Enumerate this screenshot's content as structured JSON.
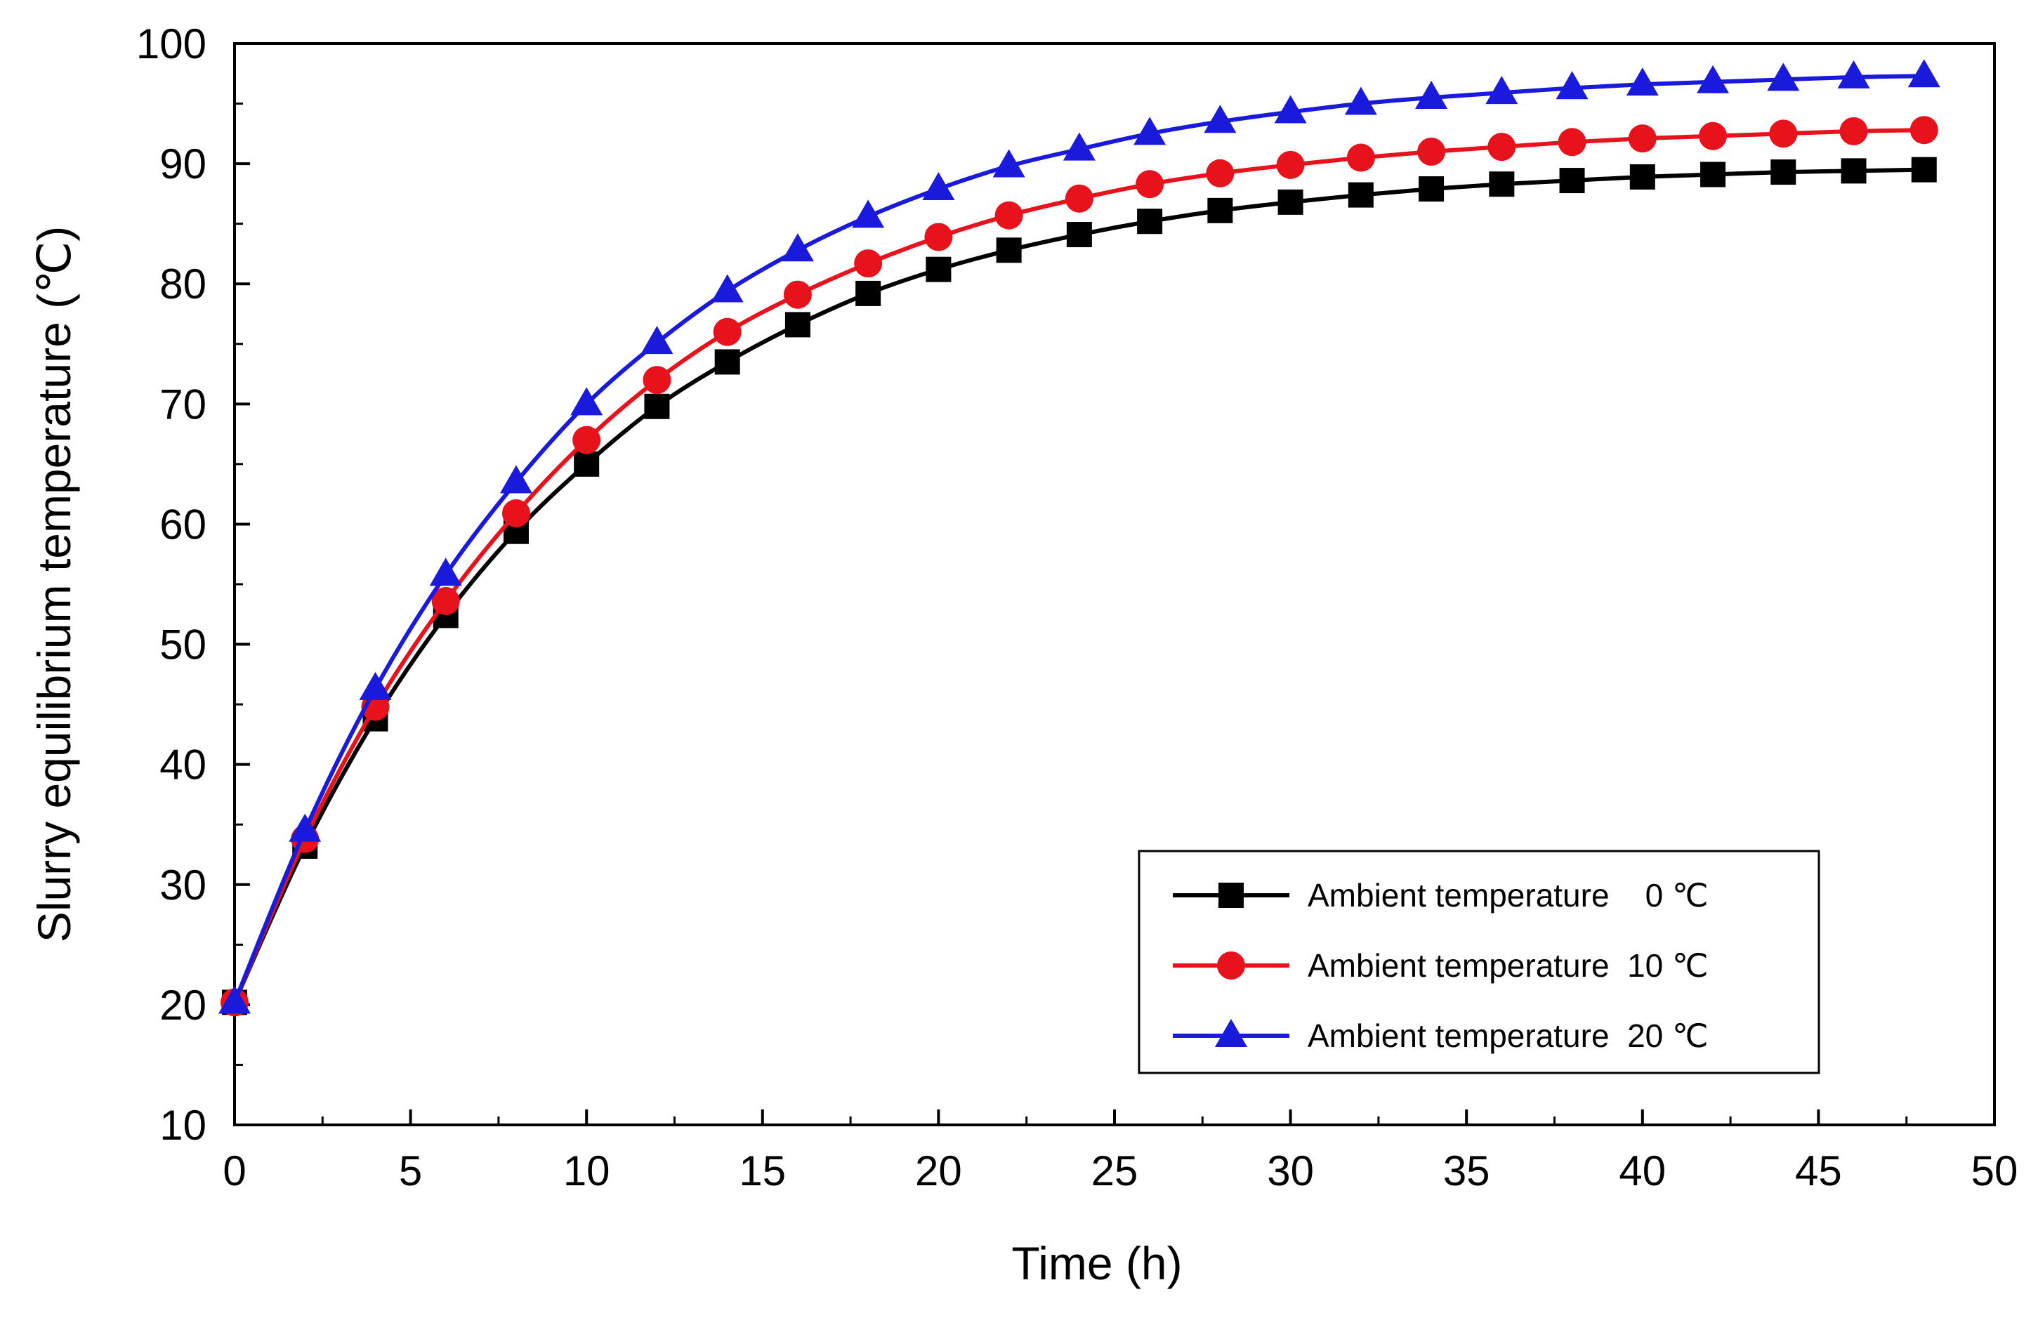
{
  "chart_data": {
    "type": "line",
    "title": "",
    "xlabel": "Time (h)",
    "ylabel": "Slurry equilibrium temperature (℃)",
    "xlim": [
      0,
      50
    ],
    "ylim": [
      10,
      100
    ],
    "xticks": [
      0,
      5,
      10,
      15,
      20,
      25,
      30,
      35,
      40,
      45,
      50
    ],
    "yticks": [
      10,
      20,
      30,
      40,
      50,
      60,
      70,
      80,
      90,
      100
    ],
    "grid": false,
    "legend_position": "bottom-right",
    "x": [
      0,
      2,
      4,
      6,
      8,
      10,
      12,
      14,
      16,
      18,
      20,
      22,
      24,
      26,
      28,
      30,
      32,
      34,
      36,
      38,
      40,
      42,
      44,
      46,
      48
    ],
    "series": [
      {
        "name": "Ambient temperature    0 ℃",
        "color": "#000000",
        "marker": "square",
        "values": [
          20.2,
          33.2,
          43.8,
          52.4,
          59.4,
          65.0,
          69.8,
          73.5,
          76.6,
          79.2,
          81.2,
          82.8,
          84.1,
          85.2,
          86.1,
          86.8,
          87.4,
          87.9,
          88.3,
          88.6,
          88.9,
          89.1,
          89.3,
          89.4,
          89.5
        ]
      },
      {
        "name": "Ambient temperature  10 ℃",
        "color": "#e8121c",
        "marker": "circle",
        "values": [
          20.2,
          33.8,
          44.8,
          53.6,
          60.9,
          67.0,
          72.0,
          76.0,
          79.1,
          81.7,
          83.9,
          85.7,
          87.1,
          88.3,
          89.2,
          89.9,
          90.5,
          91.0,
          91.4,
          91.8,
          92.1,
          92.3,
          92.5,
          92.7,
          92.8
        ]
      },
      {
        "name": "Ambient temperature  20 ℃",
        "color": "#1a1adc",
        "marker": "triangle",
        "values": [
          20.2,
          34.5,
          46.3,
          55.8,
          63.5,
          70.0,
          75.1,
          79.4,
          82.8,
          85.6,
          87.9,
          89.8,
          91.2,
          92.5,
          93.5,
          94.3,
          95.0,
          95.5,
          95.9,
          96.3,
          96.6,
          96.8,
          97.0,
          97.2,
          97.3
        ]
      }
    ]
  }
}
